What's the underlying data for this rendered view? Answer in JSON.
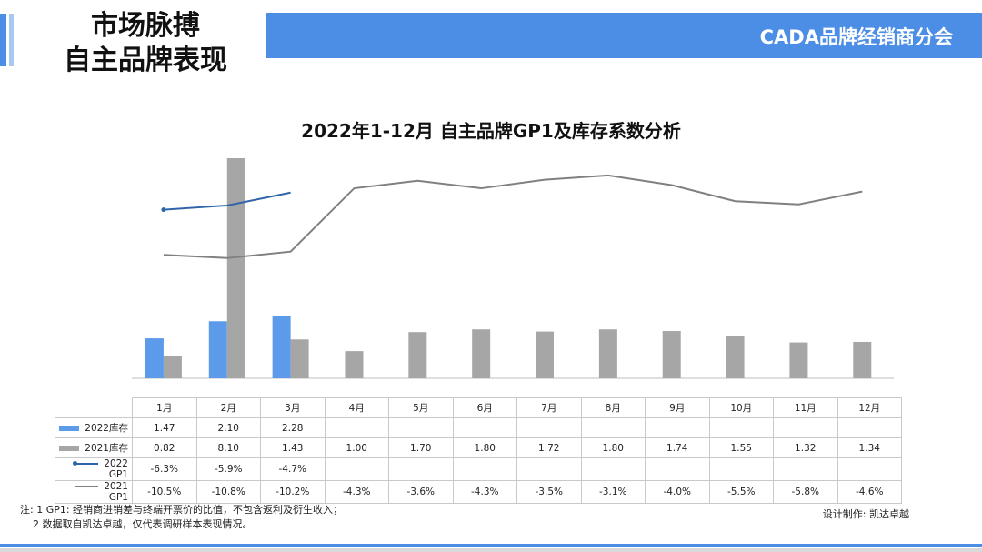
{
  "header": {
    "title_line1": "市场脉搏",
    "title_line2": "自主品牌表现",
    "brand": "CADA品牌经销商分会"
  },
  "colors": {
    "accent": "#4c8ee6",
    "series_2022_inventory": "#5b9bea",
    "series_2021_inventory": "#a6a6a6",
    "series_2022_gp1": "#2f64a8",
    "series_2021_gp1": "#808080"
  },
  "chart_data": {
    "type": "bar",
    "title": "2022年1-12月 自主品牌GP1及库存系数分析",
    "categories": [
      "1月",
      "2月",
      "3月",
      "4月",
      "5月",
      "6月",
      "7月",
      "8月",
      "9月",
      "10月",
      "11月",
      "12月"
    ],
    "series": [
      {
        "name": "2022库存",
        "kind": "bar",
        "axis": "left",
        "values": [
          1.47,
          2.1,
          2.28,
          null,
          null,
          null,
          null,
          null,
          null,
          null,
          null,
          null
        ],
        "labels": [
          "1.47",
          "2.10",
          "2.28",
          "",
          "",
          "",
          "",
          "",
          "",
          "",
          "",
          ""
        ]
      },
      {
        "name": "2021库存",
        "kind": "bar",
        "axis": "left",
        "values": [
          0.82,
          8.1,
          1.43,
          1.0,
          1.7,
          1.8,
          1.72,
          1.8,
          1.74,
          1.55,
          1.32,
          1.34
        ],
        "labels": [
          "0.82",
          "8.10",
          "1.43",
          "1.00",
          "1.70",
          "1.80",
          "1.72",
          "1.80",
          "1.74",
          "1.55",
          "1.32",
          "1.34"
        ]
      },
      {
        "name": "2022 GP1",
        "kind": "line",
        "axis": "right",
        "values": [
          -6.3,
          -5.9,
          -4.7,
          null,
          null,
          null,
          null,
          null,
          null,
          null,
          null,
          null
        ],
        "labels": [
          "-6.3%",
          "-5.9%",
          "-4.7%",
          "",
          "",
          "",
          "",
          "",
          "",
          "",
          "",
          ""
        ]
      },
      {
        "name": "2021 GP1",
        "kind": "line",
        "axis": "right",
        "values": [
          -10.5,
          -10.8,
          -10.2,
          -4.3,
          -3.6,
          -4.3,
          -3.5,
          -3.1,
          -4.0,
          -5.5,
          -5.8,
          -4.6
        ],
        "labels": [
          "-10.5%",
          "-10.8%",
          "-10.2%",
          "-4.3%",
          "-3.6%",
          "-4.3%",
          "-3.5%",
          "-3.1%",
          "-4.0%",
          "-5.5%",
          "-5.8%",
          "-4.6%"
        ]
      }
    ],
    "bar_axis_range": [
      0,
      8.1
    ],
    "line_axis_range": [
      -22,
      -1.5
    ],
    "grid": false,
    "legend": "data-table below chart"
  },
  "notes": {
    "line1": "注: 1 GP1: 经销商进销差与终端开票价的比值，不包含返利及衍生收入；",
    "line2": "2 数据取自凯达卓越，仅代表调研样本表现情况。",
    "credit": "设计制作: 凯达卓越"
  }
}
